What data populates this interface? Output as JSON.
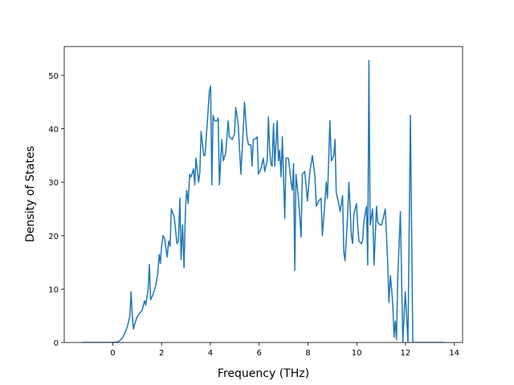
{
  "chart_data": {
    "type": "line",
    "xlabel": "Frequency (THz)",
    "ylabel": "Density of States",
    "x": [
      -1.25,
      0,
      0.2,
      0.3,
      0.4,
      0.5,
      0.6,
      0.7,
      0.75,
      0.8,
      0.85,
      0.9,
      1.0,
      1.1,
      1.2,
      1.3,
      1.35,
      1.45,
      1.5,
      1.55,
      1.65,
      1.75,
      1.85,
      1.9,
      1.95,
      2.0,
      2.06,
      2.12,
      2.23,
      2.29,
      2.35,
      2.4,
      2.52,
      2.63,
      2.69,
      2.75,
      2.8,
      2.86,
      2.92,
      2.98,
      3.03,
      3.09,
      3.15,
      3.21,
      3.31,
      3.36,
      3.41,
      3.52,
      3.57,
      3.62,
      3.73,
      3.78,
      3.96,
      4.01,
      4.06,
      4.11,
      4.17,
      4.27,
      4.32,
      4.37,
      4.47,
      4.53,
      4.63,
      4.73,
      4.78,
      4.89,
      4.99,
      5.04,
      5.14,
      5.25,
      5.35,
      5.4,
      5.5,
      5.56,
      5.66,
      5.71,
      5.76,
      5.87,
      5.92,
      5.97,
      6.07,
      6.17,
      6.23,
      6.33,
      6.38,
      6.43,
      6.48,
      6.53,
      6.59,
      6.64,
      6.74,
      6.79,
      6.84,
      6.9,
      6.95,
      7.05,
      7.1,
      7.2,
      7.31,
      7.36,
      7.41,
      7.46,
      7.51,
      7.62,
      7.72,
      7.77,
      7.87,
      7.98,
      8.08,
      8.18,
      8.29,
      8.34,
      8.44,
      8.54,
      8.59,
      8.7,
      8.75,
      8.8,
      8.9,
      8.96,
      9.06,
      9.11,
      9.16,
      9.26,
      9.32,
      9.37,
      9.42,
      9.47,
      9.52,
      9.62,
      9.68,
      9.78,
      9.83,
      9.88,
      9.99,
      10.04,
      10.09,
      10.19,
      10.24,
      10.29,
      10.4,
      10.45,
      10.5,
      10.55,
      10.65,
      10.71,
      10.81,
      10.86,
      10.96,
      11.02,
      11.07,
      11.17,
      11.27,
      11.32,
      11.38,
      11.43,
      11.48,
      11.53,
      11.58,
      11.63,
      11.68,
      11.79,
      11.84,
      11.89,
      11.99,
      12.1,
      12.2,
      12.3,
      12.5,
      13.6
    ],
    "series": [
      {
        "color": "#1f77b4",
        "values": [
          0,
          0,
          0.1,
          0.4,
          0.9,
          1.8,
          3,
          5,
          9.5,
          5,
          2.5,
          3.5,
          4.8,
          5.5,
          6,
          7.8,
          7,
          10,
          14.6,
          8,
          9,
          10.5,
          13,
          16.5,
          14.8,
          18,
          20,
          19.5,
          16,
          19,
          18,
          25,
          23.5,
          18.5,
          19,
          27,
          15.5,
          22,
          14,
          25,
          28.5,
          26,
          31.5,
          31,
          32.5,
          29.5,
          34.5,
          30,
          32,
          39.5,
          35,
          35,
          47,
          48,
          29.5,
          42.5,
          41.5,
          41.5,
          42,
          29.5,
          38,
          34,
          35.5,
          41.5,
          38.5,
          38,
          39,
          44,
          41,
          31.5,
          40,
          45,
          38.5,
          37,
          37,
          33,
          38,
          38.2,
          38.5,
          31.5,
          32.5,
          34.5,
          32,
          34,
          42.2,
          36,
          33.5,
          33,
          41,
          33,
          41.5,
          34,
          36,
          31,
          38.5,
          23.2,
          34.5,
          34.5,
          30,
          28.5,
          33.5,
          13.5,
          31.5,
          26.5,
          19.7,
          31.5,
          32,
          26.5,
          32,
          35,
          31,
          25.5,
          26.5,
          27,
          20,
          26.5,
          30,
          27,
          41.5,
          34,
          35,
          38,
          28,
          26,
          24.5,
          26,
          27.5,
          17,
          15.3,
          23,
          30,
          20,
          18.5,
          24,
          26,
          22,
          19,
          18.5,
          19,
          22.5,
          25.5,
          14.5,
          52.8,
          22,
          25,
          14.5,
          25.5,
          22.5,
          22,
          22,
          23,
          25,
          15,
          7.5,
          12.5,
          10,
          7,
          1,
          4,
          0.5,
          12,
          24.5,
          12,
          0,
          9.5,
          0,
          42.5,
          0,
          0,
          0
        ]
      }
    ],
    "xlim": [
      -1.99,
      14.34
    ],
    "ylim": [
      0,
      55.4
    ],
    "xticks": [
      0,
      2,
      4,
      6,
      8,
      10,
      12,
      14
    ],
    "yticks": [
      0,
      10,
      20,
      30,
      40,
      50
    ]
  }
}
